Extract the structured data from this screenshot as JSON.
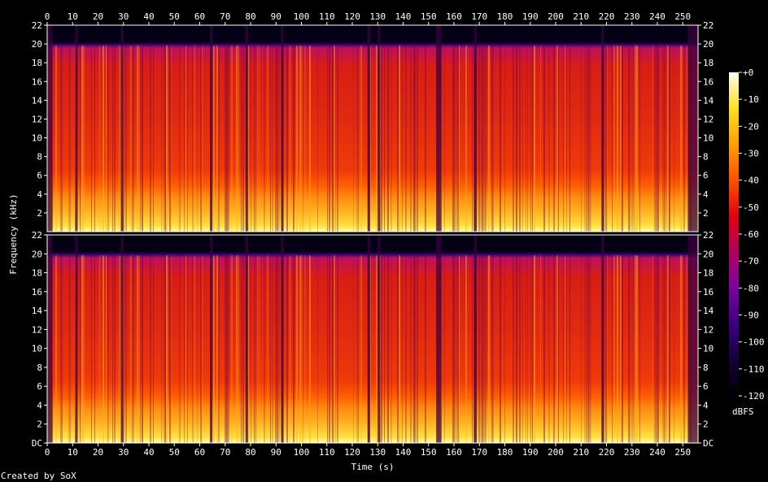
{
  "chart_data": {
    "type": "heatmap",
    "title": "",
    "xlabel": "Time (s)",
    "ylabel": "Frequency (kHz)",
    "xlim": [
      0,
      256
    ],
    "ylim_khz": [
      0,
      22
    ],
    "x_ticks": [
      0,
      10,
      20,
      30,
      40,
      50,
      60,
      70,
      80,
      90,
      100,
      110,
      120,
      130,
      140,
      150,
      160,
      170,
      180,
      190,
      200,
      210,
      220,
      230,
      240,
      250
    ],
    "y_ticks_channel_1": [
      "2",
      "4",
      "6",
      "8",
      "10",
      "12",
      "14",
      "16",
      "18",
      "20",
      "22"
    ],
    "y_ticks_channel_2": [
      "DC",
      "2",
      "4",
      "6",
      "8",
      "10",
      "12",
      "14",
      "16",
      "18",
      "20",
      "22"
    ],
    "channels": 2,
    "frequency_cutoff_khz": 20,
    "colorbar": {
      "label": "dBFS",
      "ticks": [
        "+0",
        "-10",
        "-20",
        "-30",
        "-40",
        "-50",
        "-60",
        "-70",
        "-80",
        "-90",
        "-100",
        "-110",
        "-120"
      ],
      "range": [
        -120,
        0
      ],
      "colors": [
        "#000000",
        "#14003a",
        "#3c0080",
        "#7a00a0",
        "#b00060",
        "#e00010",
        "#ff5000",
        "#ffa000",
        "#ffe020",
        "#fffff0"
      ]
    },
    "quiet_intervals_s": [
      [
        0,
        2
      ],
      [
        11,
        12
      ],
      [
        29,
        30
      ],
      [
        64,
        65
      ],
      [
        78,
        79
      ],
      [
        92,
        93
      ],
      [
        126,
        127
      ],
      [
        130,
        131
      ],
      [
        153,
        155
      ],
      [
        168,
        169
      ],
      [
        218,
        219
      ],
      [
        252,
        256
      ]
    ],
    "grid": false
  },
  "footer": {
    "credit": "Created by SoX"
  }
}
